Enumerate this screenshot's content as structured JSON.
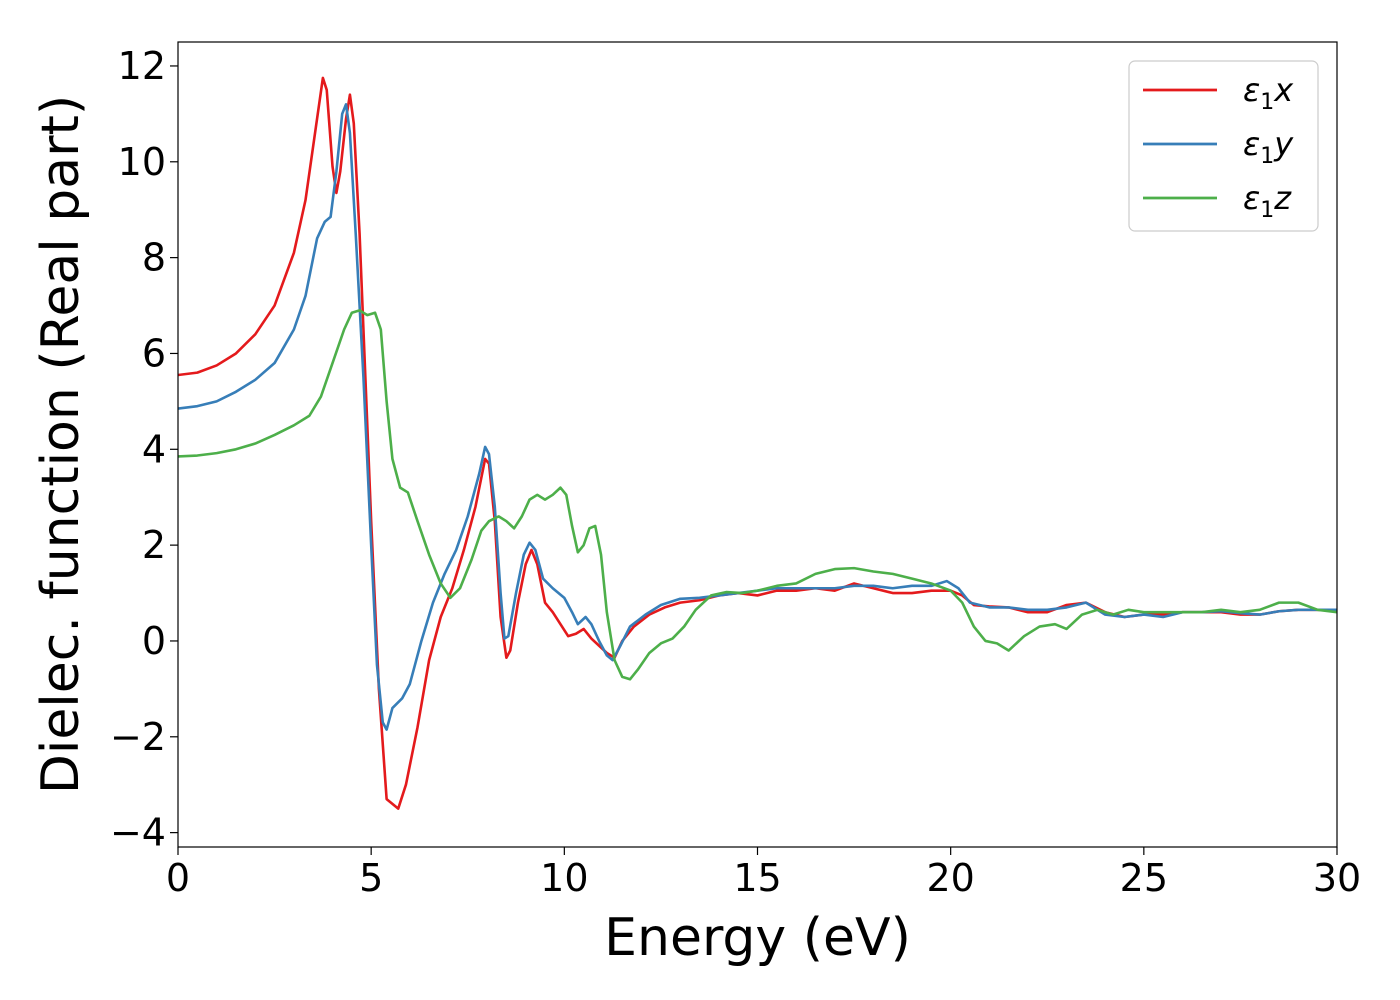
{
  "chart_data": {
    "type": "line",
    "xlabel": "Energy (eV)",
    "ylabel": "Dielec. function (Real part)",
    "xlim": [
      0,
      30
    ],
    "ylim": [
      -4.3,
      12.5
    ],
    "xticks": [
      0,
      5,
      10,
      15,
      20,
      25,
      30
    ],
    "yticks": [
      -4,
      -2,
      0,
      2,
      4,
      6,
      8,
      10,
      12
    ],
    "xtick_labels": [
      "0",
      "5",
      "10",
      "15",
      "20",
      "25",
      "30"
    ],
    "ytick_labels": [
      "−4",
      "−2",
      "0",
      "2",
      "4",
      "6",
      "8",
      "10",
      "12"
    ],
    "grid": false,
    "legend_position": "top-right",
    "series": [
      {
        "name": "x",
        "name_base": "ε",
        "name_sub": "1",
        "color": "#e41a1c",
        "points": [
          [
            0,
            5.55
          ],
          [
            0.5,
            5.6
          ],
          [
            1,
            5.75
          ],
          [
            1.5,
            6.0
          ],
          [
            2,
            6.4
          ],
          [
            2.5,
            7.0
          ],
          [
            3,
            8.1
          ],
          [
            3.3,
            9.2
          ],
          [
            3.6,
            10.9
          ],
          [
            3.75,
            11.75
          ],
          [
            3.85,
            11.5
          ],
          [
            4.0,
            9.9
          ],
          [
            4.1,
            9.35
          ],
          [
            4.2,
            9.8
          ],
          [
            4.35,
            10.9
          ],
          [
            4.45,
            11.4
          ],
          [
            4.55,
            10.8
          ],
          [
            4.7,
            8.5
          ],
          [
            4.85,
            5.5
          ],
          [
            5.0,
            2.5
          ],
          [
            5.2,
            -1.0
          ],
          [
            5.4,
            -3.3
          ],
          [
            5.7,
            -3.5
          ],
          [
            5.9,
            -3.0
          ],
          [
            6.2,
            -1.8
          ],
          [
            6.5,
            -0.4
          ],
          [
            6.8,
            0.5
          ],
          [
            7.1,
            1.1
          ],
          [
            7.4,
            1.9
          ],
          [
            7.7,
            2.8
          ],
          [
            7.95,
            3.8
          ],
          [
            8.05,
            3.7
          ],
          [
            8.2,
            2.5
          ],
          [
            8.35,
            0.5
          ],
          [
            8.5,
            -0.35
          ],
          [
            8.6,
            -0.2
          ],
          [
            8.8,
            0.8
          ],
          [
            9.0,
            1.6
          ],
          [
            9.15,
            1.9
          ],
          [
            9.3,
            1.6
          ],
          [
            9.5,
            0.8
          ],
          [
            9.7,
            0.6
          ],
          [
            9.9,
            0.35
          ],
          [
            10.1,
            0.1
          ],
          [
            10.3,
            0.15
          ],
          [
            10.5,
            0.25
          ],
          [
            10.7,
            0.05
          ],
          [
            10.9,
            -0.1
          ],
          [
            11.1,
            -0.25
          ],
          [
            11.3,
            -0.35
          ],
          [
            11.5,
            0.0
          ],
          [
            11.8,
            0.3
          ],
          [
            12.2,
            0.55
          ],
          [
            12.6,
            0.7
          ],
          [
            13,
            0.8
          ],
          [
            13.5,
            0.85
          ],
          [
            14,
            0.95
          ],
          [
            14.5,
            1.0
          ],
          [
            15,
            0.95
          ],
          [
            15.5,
            1.05
          ],
          [
            16,
            1.05
          ],
          [
            16.5,
            1.1
          ],
          [
            17,
            1.05
          ],
          [
            17.5,
            1.2
          ],
          [
            18,
            1.1
          ],
          [
            18.5,
            1.0
          ],
          [
            19,
            1.0
          ],
          [
            19.5,
            1.05
          ],
          [
            20,
            1.05
          ],
          [
            20.3,
            0.95
          ],
          [
            20.6,
            0.75
          ],
          [
            21,
            0.72
          ],
          [
            21.5,
            0.7
          ],
          [
            22,
            0.6
          ],
          [
            22.5,
            0.6
          ],
          [
            23,
            0.75
          ],
          [
            23.5,
            0.8
          ],
          [
            24,
            0.6
          ],
          [
            24.5,
            0.5
          ],
          [
            25,
            0.55
          ],
          [
            25.5,
            0.55
          ],
          [
            26,
            0.6
          ],
          [
            26.5,
            0.6
          ],
          [
            27,
            0.6
          ],
          [
            27.5,
            0.55
          ],
          [
            28,
            0.55
          ],
          [
            28.5,
            0.62
          ],
          [
            29,
            0.65
          ],
          [
            29.5,
            0.65
          ],
          [
            30,
            0.65
          ]
        ]
      },
      {
        "name": "y",
        "name_base": "ε",
        "name_sub": "1",
        "color": "#377eb8",
        "points": [
          [
            0,
            4.85
          ],
          [
            0.5,
            4.9
          ],
          [
            1,
            5.0
          ],
          [
            1.5,
            5.2
          ],
          [
            2,
            5.45
          ],
          [
            2.5,
            5.8
          ],
          [
            3,
            6.5
          ],
          [
            3.3,
            7.2
          ],
          [
            3.6,
            8.4
          ],
          [
            3.8,
            8.75
          ],
          [
            3.95,
            8.85
          ],
          [
            4.1,
            9.8
          ],
          [
            4.25,
            11.0
          ],
          [
            4.35,
            11.2
          ],
          [
            4.45,
            10.6
          ],
          [
            4.6,
            8.5
          ],
          [
            4.8,
            5.5
          ],
          [
            5.0,
            2.0
          ],
          [
            5.15,
            -0.5
          ],
          [
            5.3,
            -1.7
          ],
          [
            5.4,
            -1.85
          ],
          [
            5.55,
            -1.4
          ],
          [
            5.8,
            -1.2
          ],
          [
            6.0,
            -0.9
          ],
          [
            6.3,
            0.0
          ],
          [
            6.6,
            0.8
          ],
          [
            6.9,
            1.4
          ],
          [
            7.2,
            1.9
          ],
          [
            7.5,
            2.6
          ],
          [
            7.8,
            3.5
          ],
          [
            7.95,
            4.05
          ],
          [
            8.05,
            3.9
          ],
          [
            8.2,
            2.8
          ],
          [
            8.35,
            1.0
          ],
          [
            8.45,
            0.05
          ],
          [
            8.55,
            0.1
          ],
          [
            8.75,
            1.0
          ],
          [
            8.95,
            1.8
          ],
          [
            9.1,
            2.05
          ],
          [
            9.25,
            1.9
          ],
          [
            9.45,
            1.3
          ],
          [
            9.7,
            1.1
          ],
          [
            10.0,
            0.9
          ],
          [
            10.2,
            0.6
          ],
          [
            10.35,
            0.35
          ],
          [
            10.55,
            0.5
          ],
          [
            10.7,
            0.35
          ],
          [
            10.9,
            0.0
          ],
          [
            11.1,
            -0.3
          ],
          [
            11.25,
            -0.4
          ],
          [
            11.45,
            -0.1
          ],
          [
            11.7,
            0.3
          ],
          [
            12.1,
            0.55
          ],
          [
            12.5,
            0.75
          ],
          [
            13,
            0.88
          ],
          [
            13.5,
            0.9
          ],
          [
            14,
            0.95
          ],
          [
            14.5,
            1.0
          ],
          [
            15,
            1.05
          ],
          [
            15.5,
            1.1
          ],
          [
            16,
            1.1
          ],
          [
            16.5,
            1.1
          ],
          [
            17,
            1.1
          ],
          [
            17.5,
            1.15
          ],
          [
            18,
            1.15
          ],
          [
            18.5,
            1.1
          ],
          [
            19,
            1.15
          ],
          [
            19.5,
            1.15
          ],
          [
            19.9,
            1.25
          ],
          [
            20.2,
            1.1
          ],
          [
            20.5,
            0.8
          ],
          [
            21,
            0.7
          ],
          [
            21.5,
            0.7
          ],
          [
            22,
            0.65
          ],
          [
            22.5,
            0.65
          ],
          [
            23,
            0.7
          ],
          [
            23.5,
            0.8
          ],
          [
            24,
            0.55
          ],
          [
            24.5,
            0.5
          ],
          [
            25,
            0.55
          ],
          [
            25.5,
            0.5
          ],
          [
            26,
            0.6
          ],
          [
            26.5,
            0.6
          ],
          [
            27,
            0.62
          ],
          [
            27.5,
            0.58
          ],
          [
            28,
            0.55
          ],
          [
            28.5,
            0.62
          ],
          [
            29,
            0.65
          ],
          [
            29.5,
            0.65
          ],
          [
            30,
            0.65
          ]
        ]
      },
      {
        "name": "z",
        "name_base": "ε",
        "name_sub": "1",
        "color": "#4daf4a",
        "points": [
          [
            0,
            3.85
          ],
          [
            0.5,
            3.87
          ],
          [
            1,
            3.92
          ],
          [
            1.5,
            4.0
          ],
          [
            2,
            4.12
          ],
          [
            2.5,
            4.3
          ],
          [
            3,
            4.5
          ],
          [
            3.4,
            4.7
          ],
          [
            3.7,
            5.1
          ],
          [
            4.0,
            5.8
          ],
          [
            4.3,
            6.5
          ],
          [
            4.5,
            6.85
          ],
          [
            4.7,
            6.9
          ],
          [
            4.9,
            6.8
          ],
          [
            5.1,
            6.85
          ],
          [
            5.25,
            6.5
          ],
          [
            5.4,
            5.0
          ],
          [
            5.55,
            3.8
          ],
          [
            5.75,
            3.2
          ],
          [
            5.95,
            3.1
          ],
          [
            6.2,
            2.5
          ],
          [
            6.5,
            1.8
          ],
          [
            6.8,
            1.2
          ],
          [
            7.05,
            0.9
          ],
          [
            7.3,
            1.1
          ],
          [
            7.6,
            1.7
          ],
          [
            7.85,
            2.3
          ],
          [
            8.05,
            2.5
          ],
          [
            8.3,
            2.6
          ],
          [
            8.5,
            2.5
          ],
          [
            8.7,
            2.35
          ],
          [
            8.9,
            2.6
          ],
          [
            9.1,
            2.95
          ],
          [
            9.3,
            3.05
          ],
          [
            9.5,
            2.95
          ],
          [
            9.7,
            3.05
          ],
          [
            9.9,
            3.2
          ],
          [
            10.05,
            3.05
          ],
          [
            10.2,
            2.4
          ],
          [
            10.35,
            1.85
          ],
          [
            10.5,
            2.0
          ],
          [
            10.65,
            2.35
          ],
          [
            10.8,
            2.4
          ],
          [
            10.95,
            1.8
          ],
          [
            11.1,
            0.6
          ],
          [
            11.3,
            -0.4
          ],
          [
            11.5,
            -0.75
          ],
          [
            11.7,
            -0.8
          ],
          [
            11.9,
            -0.6
          ],
          [
            12.2,
            -0.25
          ],
          [
            12.5,
            -0.05
          ],
          [
            12.8,
            0.05
          ],
          [
            13.1,
            0.3
          ],
          [
            13.4,
            0.65
          ],
          [
            13.8,
            0.95
          ],
          [
            14.2,
            1.02
          ],
          [
            14.6,
            1.0
          ],
          [
            15,
            1.05
          ],
          [
            15.5,
            1.15
          ],
          [
            16,
            1.2
          ],
          [
            16.5,
            1.4
          ],
          [
            17,
            1.5
          ],
          [
            17.5,
            1.52
          ],
          [
            18,
            1.45
          ],
          [
            18.5,
            1.4
          ],
          [
            19,
            1.3
          ],
          [
            19.5,
            1.2
          ],
          [
            20,
            1.05
          ],
          [
            20.3,
            0.8
          ],
          [
            20.6,
            0.3
          ],
          [
            20.9,
            0.0
          ],
          [
            21.2,
            -0.05
          ],
          [
            21.5,
            -0.2
          ],
          [
            21.9,
            0.1
          ],
          [
            22.3,
            0.3
          ],
          [
            22.7,
            0.35
          ],
          [
            23.0,
            0.25
          ],
          [
            23.4,
            0.55
          ],
          [
            23.8,
            0.65
          ],
          [
            24.2,
            0.55
          ],
          [
            24.6,
            0.65
          ],
          [
            25,
            0.6
          ],
          [
            25.5,
            0.6
          ],
          [
            26,
            0.6
          ],
          [
            26.5,
            0.6
          ],
          [
            27,
            0.65
          ],
          [
            27.5,
            0.6
          ],
          [
            28,
            0.65
          ],
          [
            28.5,
            0.8
          ],
          [
            29,
            0.8
          ],
          [
            29.5,
            0.65
          ],
          [
            30,
            0.6
          ]
        ]
      }
    ]
  }
}
